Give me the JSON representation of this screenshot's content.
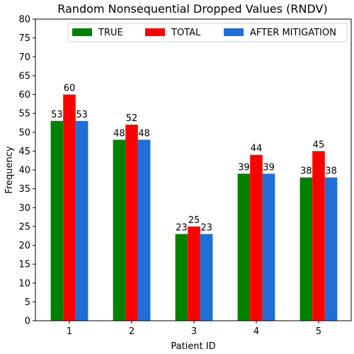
{
  "chart_data": {
    "type": "bar",
    "title": "Random Nonsequential Dropped Values (RNDV)",
    "xlabel": "Patient ID",
    "ylabel": "Frequency",
    "categories": [
      "1",
      "2",
      "3",
      "4",
      "5"
    ],
    "ylim": [
      0,
      80
    ],
    "yticks": [
      0,
      5,
      10,
      15,
      20,
      25,
      30,
      35,
      40,
      45,
      50,
      55,
      60,
      65,
      70,
      75,
      80
    ],
    "grid": false,
    "legend_position": "top-right",
    "series": [
      {
        "name": "TRUE",
        "color": "#008000",
        "values": [
          53,
          48,
          23,
          39,
          38
        ]
      },
      {
        "name": "TOTAL",
        "color": "#ff0000",
        "values": [
          60,
          52,
          25,
          44,
          45
        ]
      },
      {
        "name": "AFTER MITIGATION",
        "color": "#1f6fd6",
        "values": [
          53,
          48,
          23,
          39,
          38
        ]
      }
    ]
  }
}
